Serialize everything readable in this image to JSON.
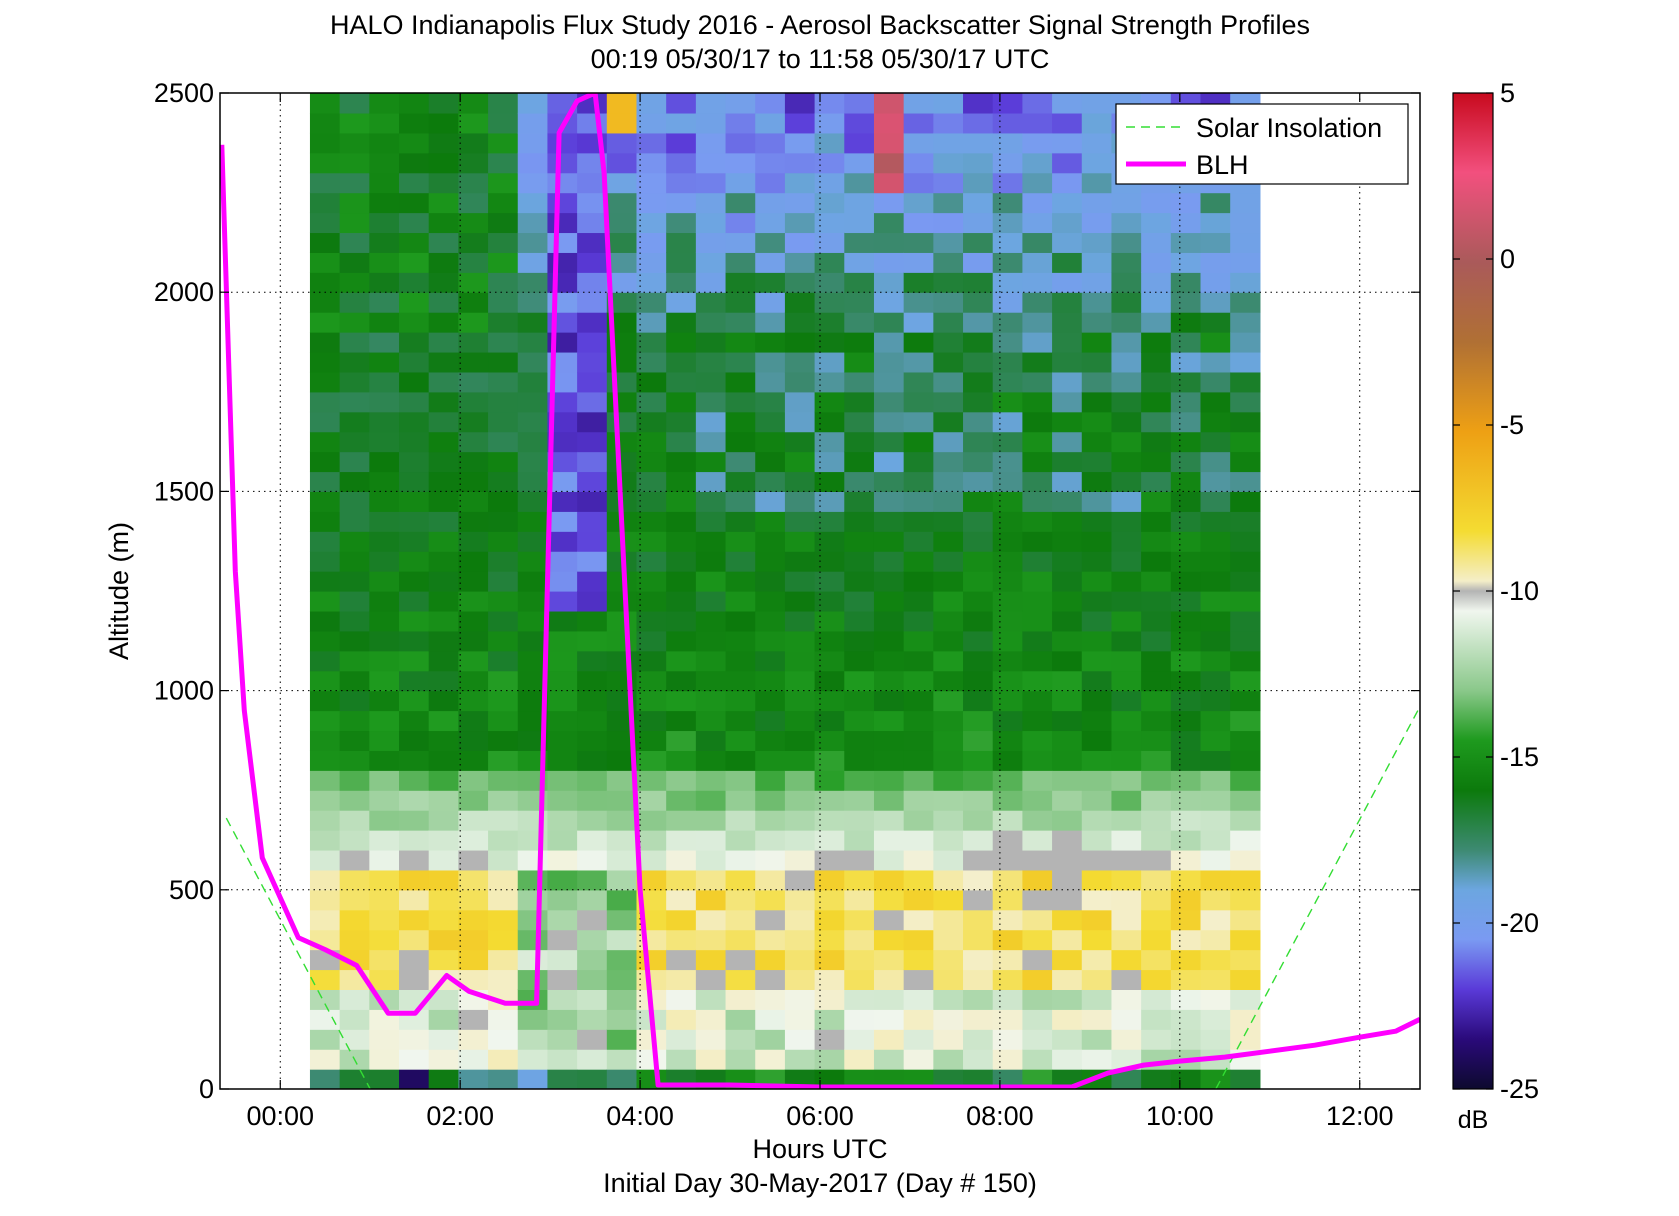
{
  "chart_data": {
    "type": "heatmap",
    "title": "HALO Indianapolis Flux Study 2016 - Aerosol Backscatter Signal Strength Profiles",
    "subtitle": "00:19 05/30/17 to 11:58 05/30/17  UTC",
    "xlabel": "Hours UTC",
    "xlabel2": "Initial Day 30-May-2017 (Day # 150)",
    "ylabel": "Altitude (m)",
    "xlim": [
      -0.67,
      12.67
    ],
    "ylim": [
      0,
      2500
    ],
    "x_ticks": [
      0,
      2,
      4,
      6,
      8,
      10,
      12
    ],
    "x_tick_labels": [
      "00:00",
      "02:00",
      "04:00",
      "06:00",
      "08:00",
      "10:00",
      "12:00"
    ],
    "y_ticks": [
      0,
      500,
      1000,
      1500,
      2000,
      2500
    ],
    "y_tick_labels": [
      "0",
      "500",
      "1000",
      "1500",
      "2000",
      "2500"
    ],
    "grid": true,
    "colorbar": {
      "range": [
        -25,
        5
      ],
      "ticks": [
        5,
        0,
        -5,
        -10,
        -15,
        -20,
        -25
      ],
      "tick_labels": [
        "5",
        "0",
        "-5",
        "-10",
        "-15",
        "-20",
        "-25"
      ],
      "unit": "dB"
    },
    "legend": {
      "placement": "top-right",
      "entries": [
        "Solar Insolation",
        "BLH"
      ]
    },
    "colors": {
      "blh": "#ff00ff",
      "solar": "#33dd33",
      "no_data": "#b4b4b4"
    },
    "heatmap": {
      "time_start": 0.33,
      "time_step": 0.33,
      "alt_step": 50,
      "cols": 32,
      "rows": 50,
      "profile_summary": "aerosol-laden boundary layer (about -9 to -7 dB) below ~600 m, green residual layer (about -17 to -15 dB) up to ~2000 m, blue to purple clear air (about -20 to -22 dB) above; cloud returns near 3.3-3.6 h and 6.7 h at the top"
    },
    "series": [
      {
        "name": "BLH",
        "x": [
          -0.65,
          -0.5,
          -0.4,
          -0.2,
          0.2,
          0.5,
          0.85,
          1.2,
          1.5,
          1.85,
          2.1,
          2.5,
          2.85,
          3.1,
          3.3,
          3.5,
          3.6,
          4.0,
          4.2,
          5.0,
          6.0,
          7.0,
          8.0,
          8.8,
          9.2,
          9.6,
          10.0,
          10.5,
          11.0,
          11.5,
          12.0,
          12.4,
          12.67
        ],
        "y": [
          2370,
          1300,
          950,
          580,
          380,
          350,
          310,
          190,
          190,
          285,
          245,
          215,
          215,
          2400,
          2480,
          2500,
          2300,
          500,
          10,
          10,
          5,
          5,
          5,
          5,
          40,
          60,
          70,
          80,
          95,
          110,
          130,
          145,
          175
        ]
      },
      {
        "name": "Solar Insolation",
        "x": [
          -0.6,
          1.0
        ],
        "y": [
          680,
          0
        ]
      },
      {
        "name": "Solar Insolation",
        "x": [
          10.4,
          12.67
        ],
        "y": [
          0,
          960
        ]
      }
    ]
  }
}
